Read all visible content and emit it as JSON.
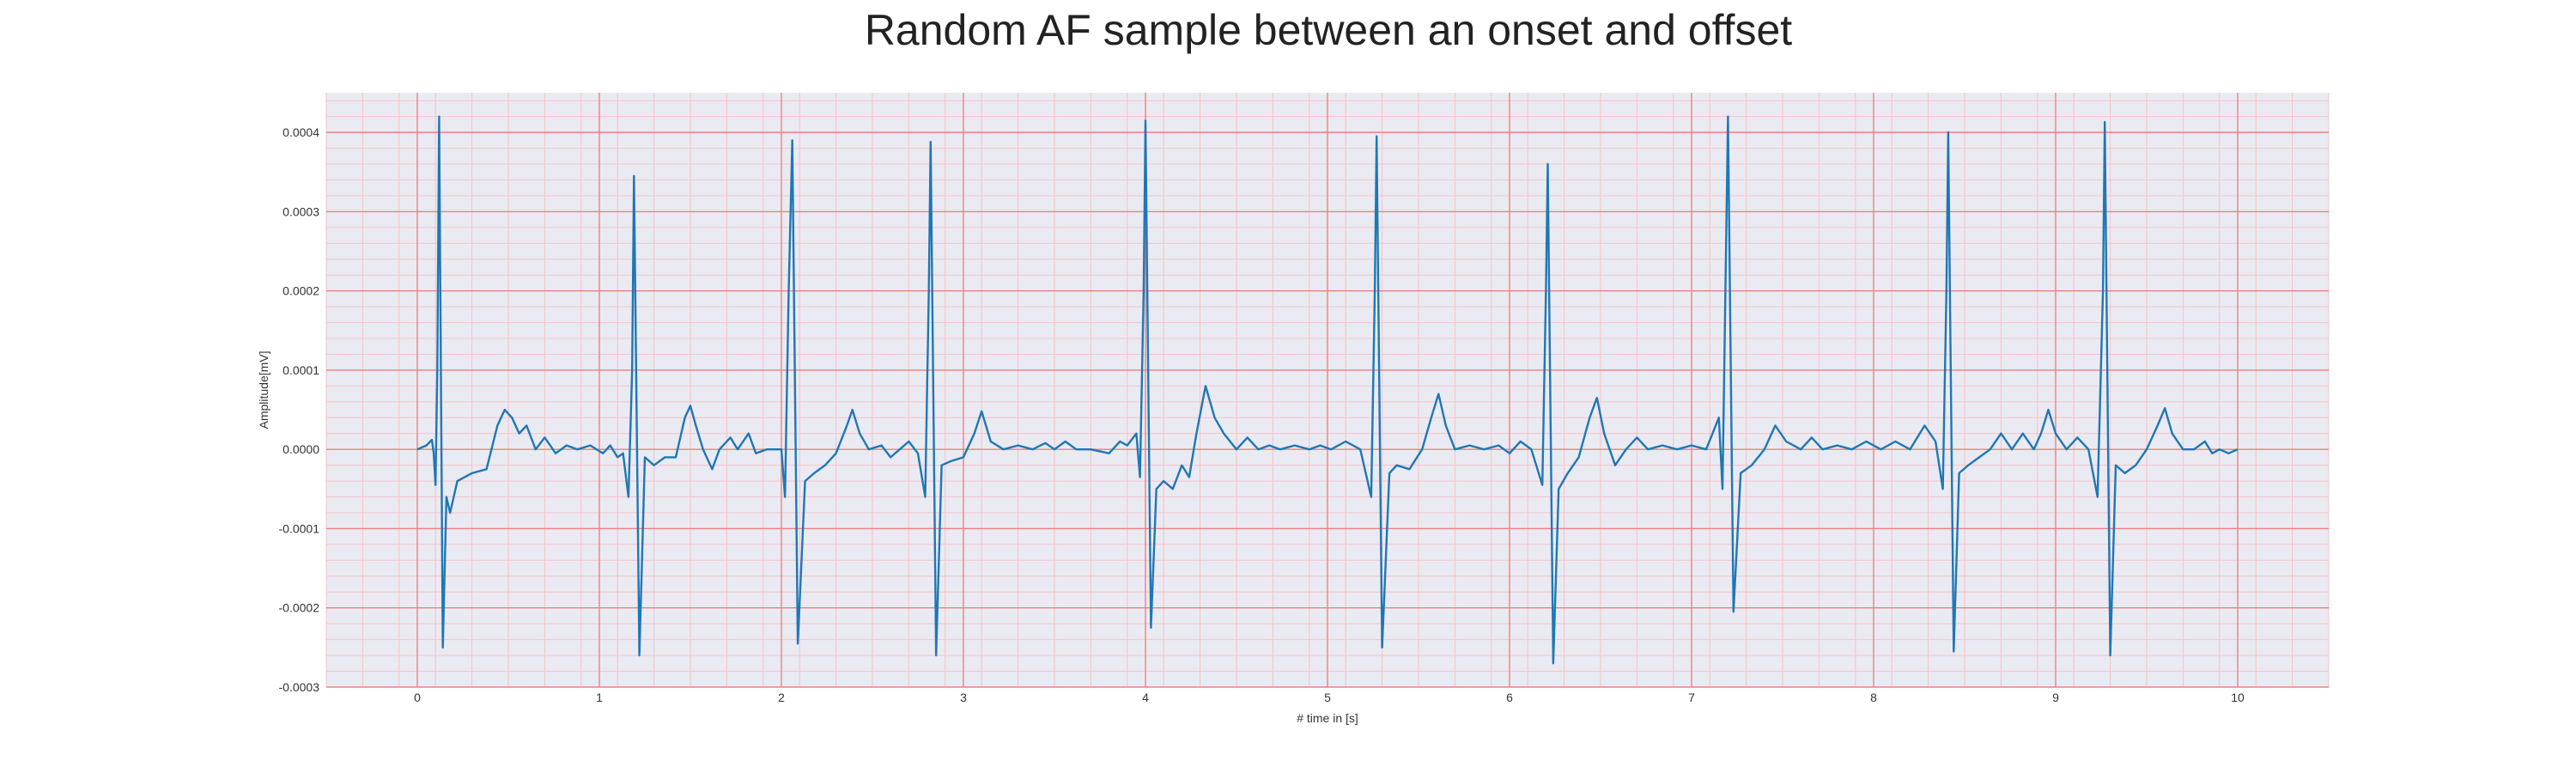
{
  "chart_data": {
    "type": "line",
    "title": "Random AF sample between an onset and offset",
    "xlabel": "# time in [s]",
    "ylabel": "Amplitude[mV]",
    "xlim": [
      -0.5,
      10.5
    ],
    "ylim": [
      -0.0003,
      0.00045
    ],
    "x_ticks": [
      0,
      1,
      2,
      3,
      4,
      5,
      6,
      7,
      8,
      9,
      10
    ],
    "x_tick_labels": [
      "0",
      "1",
      "2",
      "3",
      "4",
      "5",
      "6",
      "7",
      "8",
      "9",
      "10"
    ],
    "y_ticks": [
      -0.0003,
      -0.0002,
      -0.0001,
      0,
      0.0001,
      0.0002,
      0.0003,
      0.0004
    ],
    "y_tick_labels": [
      "-0.0003",
      "-0.0002",
      "-0.0001",
      "0.0000",
      "0.0001",
      "0.0002",
      "0.0003",
      "0.0004"
    ],
    "grid": true,
    "minor_grid": true,
    "colors": {
      "line": "#1f77b4",
      "plot_background": "#eaeaf2",
      "major_grid": "#f08080",
      "minor_grid": "#f5c3c8"
    },
    "series": [
      {
        "points": [
          [
            0.0,
            0.0
          ],
          [
            0.05,
            5e-06
          ],
          [
            0.08,
            1.2e-05
          ],
          [
            0.09,
            -5e-06
          ],
          [
            0.1,
            -4.5e-05
          ],
          [
            0.11,
            0.0001
          ],
          [
            0.12,
            0.00042
          ],
          [
            0.14,
            -0.00025
          ],
          [
            0.16,
            -6e-05
          ],
          [
            0.18,
            -8e-05
          ],
          [
            0.22,
            -4e-05
          ],
          [
            0.3,
            -3e-05
          ],
          [
            0.38,
            -2.5e-05
          ],
          [
            0.44,
            3e-05
          ],
          [
            0.48,
            5e-05
          ],
          [
            0.52,
            4e-05
          ],
          [
            0.56,
            2e-05
          ],
          [
            0.6,
            3e-05
          ],
          [
            0.65,
            0.0
          ],
          [
            0.7,
            1.5e-05
          ],
          [
            0.76,
            -5e-06
          ],
          [
            0.82,
            5e-06
          ],
          [
            0.88,
            0.0
          ],
          [
            0.95,
            5e-06
          ],
          [
            1.02,
            -5e-06
          ],
          [
            1.06,
            5e-06
          ],
          [
            1.1,
            -1e-05
          ],
          [
            1.13,
            -5e-06
          ],
          [
            1.16,
            -6e-05
          ],
          [
            1.18,
            0.0001
          ],
          [
            1.19,
            0.000345
          ],
          [
            1.22,
            -0.00026
          ],
          [
            1.25,
            -1e-05
          ],
          [
            1.3,
            -2e-05
          ],
          [
            1.36,
            -1e-05
          ],
          [
            1.42,
            -1e-05
          ],
          [
            1.47,
            4e-05
          ],
          [
            1.5,
            5.5e-05
          ],
          [
            1.53,
            3e-05
          ],
          [
            1.57,
            0.0
          ],
          [
            1.62,
            -2.5e-05
          ],
          [
            1.66,
            0.0
          ],
          [
            1.72,
            1.5e-05
          ],
          [
            1.76,
            0.0
          ],
          [
            1.82,
            2e-05
          ],
          [
            1.86,
            -5e-06
          ],
          [
            1.92,
            0.0
          ],
          [
            2.0,
            0.0
          ],
          [
            2.02,
            -6e-05
          ],
          [
            2.04,
            0.0002
          ],
          [
            2.06,
            0.00039
          ],
          [
            2.09,
            -0.000245
          ],
          [
            2.13,
            -4e-05
          ],
          [
            2.18,
            -3e-05
          ],
          [
            2.24,
            -2e-05
          ],
          [
            2.3,
            -5e-06
          ],
          [
            2.36,
            3e-05
          ],
          [
            2.39,
            5e-05
          ],
          [
            2.43,
            2e-05
          ],
          [
            2.48,
            0.0
          ],
          [
            2.55,
            5e-06
          ],
          [
            2.6,
            -1e-05
          ],
          [
            2.65,
            0.0
          ],
          [
            2.7,
            1e-05
          ],
          [
            2.75,
            -5e-06
          ],
          [
            2.79,
            -6e-05
          ],
          [
            2.81,
            0.0002
          ],
          [
            2.82,
            0.000388
          ],
          [
            2.85,
            -0.00026
          ],
          [
            2.88,
            -2e-05
          ],
          [
            2.93,
            -1.5e-05
          ],
          [
            3.0,
            -1e-05
          ],
          [
            3.06,
            2e-05
          ],
          [
            3.1,
            4.8e-05
          ],
          [
            3.15,
            1e-05
          ],
          [
            3.22,
            0.0
          ],
          [
            3.3,
            5e-06
          ],
          [
            3.38,
            0.0
          ],
          [
            3.45,
            8e-06
          ],
          [
            3.5,
            0.0
          ],
          [
            3.56,
            1e-05
          ],
          [
            3.62,
            0.0
          ],
          [
            3.7,
            0.0
          ],
          [
            3.8,
            -5e-06
          ],
          [
            3.86,
            1e-05
          ],
          [
            3.9,
            5e-06
          ],
          [
            3.95,
            2e-05
          ],
          [
            3.97,
            -3.5e-05
          ],
          [
            3.99,
            0.0002
          ],
          [
            4.0,
            0.000415
          ],
          [
            4.03,
            -0.000225
          ],
          [
            4.06,
            -5e-05
          ],
          [
            4.1,
            -4e-05
          ],
          [
            4.15,
            -5e-05
          ],
          [
            4.2,
            -2e-05
          ],
          [
            4.24,
            -3.5e-05
          ],
          [
            4.28,
            2e-05
          ],
          [
            4.33,
            8e-05
          ],
          [
            4.38,
            4e-05
          ],
          [
            4.43,
            2e-05
          ],
          [
            4.5,
            0.0
          ],
          [
            4.56,
            1.5e-05
          ],
          [
            4.62,
            0.0
          ],
          [
            4.68,
            5e-06
          ],
          [
            4.74,
            0.0
          ],
          [
            4.82,
            5e-06
          ],
          [
            4.9,
            0.0
          ],
          [
            4.96,
            5e-06
          ],
          [
            5.02,
            0.0
          ],
          [
            5.1,
            1e-05
          ],
          [
            5.18,
            0.0
          ],
          [
            5.24,
            -6e-05
          ],
          [
            5.26,
            0.0002
          ],
          [
            5.27,
            0.000395
          ],
          [
            5.3,
            -0.00025
          ],
          [
            5.34,
            -3e-05
          ],
          [
            5.38,
            -2e-05
          ],
          [
            5.45,
            -2.5e-05
          ],
          [
            5.52,
            0.0
          ],
          [
            5.57,
            4e-05
          ],
          [
            5.61,
            7e-05
          ],
          [
            5.65,
            3e-05
          ],
          [
            5.7,
            0.0
          ],
          [
            5.78,
            5e-06
          ],
          [
            5.86,
            0.0
          ],
          [
            5.94,
            5e-06
          ],
          [
            6.0,
            -5e-06
          ],
          [
            6.06,
            1e-05
          ],
          [
            6.12,
            0.0
          ],
          [
            6.18,
            -4.5e-05
          ],
          [
            6.2,
            0.0002
          ],
          [
            6.21,
            0.00036
          ],
          [
            6.24,
            -0.00027
          ],
          [
            6.27,
            -5e-05
          ],
          [
            6.32,
            -3e-05
          ],
          [
            6.38,
            -1e-05
          ],
          [
            6.44,
            4e-05
          ],
          [
            6.48,
            6.5e-05
          ],
          [
            6.52,
            2e-05
          ],
          [
            6.58,
            -2e-05
          ],
          [
            6.64,
            0.0
          ],
          [
            6.7,
            1.5e-05
          ],
          [
            6.76,
            0.0
          ],
          [
            6.84,
            5e-06
          ],
          [
            6.92,
            0.0
          ],
          [
            7.0,
            5e-06
          ],
          [
            7.08,
            0.0
          ],
          [
            7.15,
            4e-05
          ],
          [
            7.17,
            -5e-05
          ],
          [
            7.2,
            0.00042
          ],
          [
            7.23,
            -0.000205
          ],
          [
            7.27,
            -3e-05
          ],
          [
            7.33,
            -2e-05
          ],
          [
            7.4,
            0.0
          ],
          [
            7.46,
            3e-05
          ],
          [
            7.52,
            1e-05
          ],
          [
            7.6,
            0.0
          ],
          [
            7.66,
            1.5e-05
          ],
          [
            7.72,
            0.0
          ],
          [
            7.8,
            5e-06
          ],
          [
            7.88,
            0.0
          ],
          [
            7.96,
            1e-05
          ],
          [
            8.04,
            0.0
          ],
          [
            8.12,
            1e-05
          ],
          [
            8.2,
            0.0
          ],
          [
            8.28,
            3e-05
          ],
          [
            8.34,
            1e-05
          ],
          [
            8.38,
            -5e-05
          ],
          [
            8.4,
            0.0002
          ],
          [
            8.41,
            0.0004
          ],
          [
            8.44,
            -0.000255
          ],
          [
            8.47,
            -3e-05
          ],
          [
            8.52,
            -2e-05
          ],
          [
            8.58,
            -1e-05
          ],
          [
            8.64,
            0.0
          ],
          [
            8.7,
            2e-05
          ],
          [
            8.76,
            0.0
          ],
          [
            8.82,
            2e-05
          ],
          [
            8.88,
            0.0
          ],
          [
            8.92,
            2e-05
          ],
          [
            8.96,
            5e-05
          ],
          [
            9.0,
            2e-05
          ],
          [
            9.06,
            0.0
          ],
          [
            9.12,
            1.5e-05
          ],
          [
            9.18,
            0.0
          ],
          [
            9.23,
            -6e-05
          ],
          [
            9.26,
            0.0002
          ],
          [
            9.27,
            0.000413
          ],
          [
            9.3,
            -0.00026
          ],
          [
            9.33,
            -2e-05
          ],
          [
            9.38,
            -3e-05
          ],
          [
            9.44,
            -2e-05
          ],
          [
            9.5,
            0.0
          ],
          [
            9.56,
            3e-05
          ],
          [
            9.6,
            5.2e-05
          ],
          [
            9.64,
            2e-05
          ],
          [
            9.7,
            0.0
          ],
          [
            9.76,
            0.0
          ],
          [
            9.82,
            1e-05
          ],
          [
            9.86,
            -5e-06
          ],
          [
            9.9,
            0.0
          ],
          [
            9.95,
            -5e-06
          ],
          [
            10.0,
            0.0
          ]
        ]
      }
    ]
  }
}
